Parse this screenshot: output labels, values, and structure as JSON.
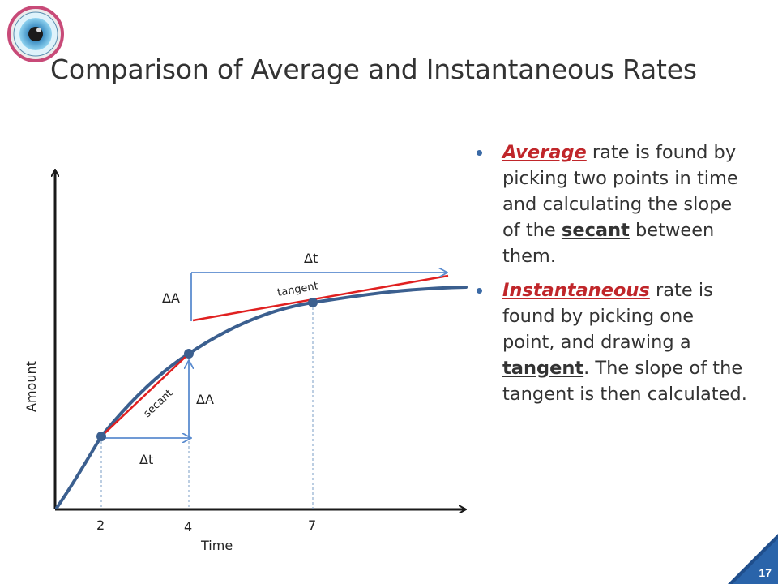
{
  "slide": {
    "title": "Comparison of Average and Instantaneous Rates",
    "page_number": "17",
    "logo_icon": "eye-icon"
  },
  "graph": {
    "x_axis_label": "Time",
    "y_axis_label": "Amount",
    "x_ticks": [
      "2",
      "4",
      "7"
    ],
    "labels": {
      "delta_t_secant": "Δt",
      "delta_a_secant": "ΔA",
      "delta_t_tangent": "Δt",
      "delta_a_tangent": "ΔA",
      "secant": "secant",
      "tangent": "tangent"
    },
    "colors": {
      "curve": "#3b5f8f",
      "line": "#e02020",
      "arrow": "#5b8ccf"
    }
  },
  "bullets": [
    {
      "lead": "Average",
      "part1": " rate is found by picking two points in time and calculating the slope of the ",
      "key": "secant",
      "part2": " between them."
    },
    {
      "lead": "Instantaneous",
      "part1": " rate is found by picking one point, and drawing a ",
      "key": "tangent",
      "part2": ".  The slope of the tangent is then calculated."
    }
  ]
}
